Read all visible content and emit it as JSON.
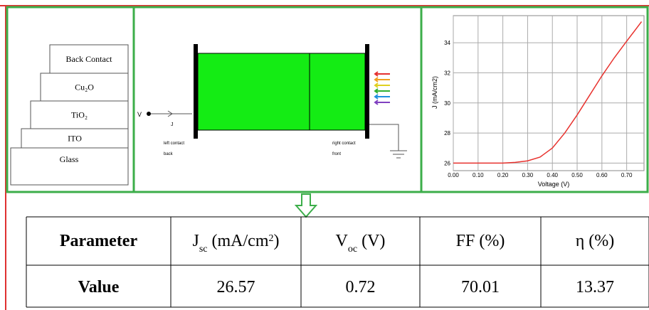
{
  "layers": [
    "Back Contact",
    "Cu₂O",
    "TiO₂",
    "ITO",
    "Glass"
  ],
  "device": {
    "voltage": "V",
    "current": "J",
    "left_contact": "left contact",
    "left_side": "back",
    "right_contact": "right contact",
    "right_side": "front"
  },
  "chart_data": {
    "type": "line",
    "x_label": "Voltage (V)",
    "y_label": "J (mA/cm2)",
    "x": [
      0,
      0.1,
      0.2,
      0.25,
      0.3,
      0.35,
      0.4,
      0.45,
      0.5,
      0.55,
      0.6,
      0.65,
      0.7,
      0.76
    ],
    "series": [
      {
        "color": "#e8322e",
        "values": [
          26.0,
          26.0,
          26.0,
          26.05,
          26.15,
          26.4,
          27.0,
          28.0,
          29.2,
          30.5,
          31.8,
          33.0,
          34.1,
          35.4
        ]
      }
    ],
    "xlim": [
      0,
      0.77
    ],
    "ylim": [
      25.5,
      35.8
    ],
    "xticks": [
      {
        "value": 0,
        "label": "0.00"
      },
      {
        "value": 0.1,
        "label": "0.10"
      },
      {
        "value": 0.2,
        "label": "0.20"
      },
      {
        "value": 0.3,
        "label": "0.30"
      },
      {
        "value": 0.4,
        "label": "0.40"
      },
      {
        "value": 0.5,
        "label": "0.50"
      },
      {
        "value": 0.6,
        "label": "0.60"
      },
      {
        "value": 0.7,
        "label": "0.70"
      }
    ],
    "yticks": [
      26,
      28,
      30,
      32,
      34
    ],
    "grid": true
  },
  "table": {
    "header": [
      [
        {
          "text": "Parameter"
        }
      ],
      [
        {
          "text": "J"
        },
        {
          "text": "sc",
          "sub": true
        },
        {
          "text": " (mA/cm"
        },
        {
          "text": "2",
          "sup": true
        },
        {
          "text": ")"
        }
      ],
      [
        {
          "text": "V"
        },
        {
          "text": "oc",
          "sub": true
        },
        {
          "text": " (V)"
        }
      ],
      [
        {
          "text": "FF (%)"
        }
      ],
      [
        {
          "text": "η (%)"
        }
      ]
    ],
    "row": [
      "Value",
      "26.57",
      "0.72",
      "70.01",
      "13.37"
    ]
  }
}
